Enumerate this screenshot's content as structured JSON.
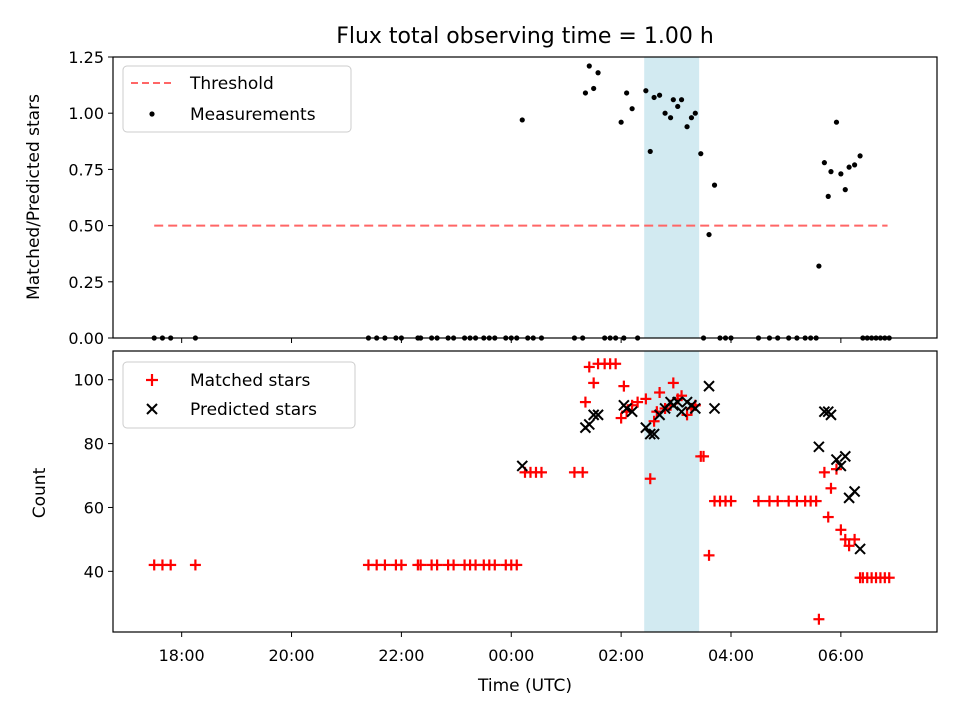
{
  "figure": {
    "title": "Flux total observing time = 1.00 h"
  },
  "chart_data": [
    {
      "type": "scatter",
      "panel": "top",
      "ylabel": "Matched/Predicted stars",
      "xlabel": "",
      "xlim_hours": [
        16.75,
        31.75
      ],
      "ylim": [
        0,
        1.25
      ],
      "y_ticks": [
        "0.00",
        "0.25",
        "0.50",
        "0.75",
        "1.00",
        "1.25"
      ],
      "shaded_span": [
        26.42,
        27.42
      ],
      "shade_color": "#add8e6",
      "threshold": {
        "name": "Threshold",
        "value": 0.5,
        "x_range": [
          17.5,
          30.85
        ],
        "color": "#ff6666",
        "style": "dashed"
      },
      "legend": {
        "position": "upper-left",
        "entries": [
          "Threshold",
          "Measurements"
        ]
      },
      "series": [
        {
          "name": "Measurements",
          "color": "#000000",
          "marker": "dot",
          "points": [
            [
              17.5,
              0
            ],
            [
              17.65,
              0
            ],
            [
              17.8,
              0
            ],
            [
              18.25,
              0
            ],
            [
              21.4,
              0
            ],
            [
              21.55,
              0
            ],
            [
              21.7,
              0
            ],
            [
              21.9,
              0
            ],
            [
              22.0,
              0
            ],
            [
              22.3,
              0
            ],
            [
              22.35,
              0
            ],
            [
              22.55,
              0
            ],
            [
              22.65,
              0
            ],
            [
              22.85,
              0
            ],
            [
              22.95,
              0
            ],
            [
              23.15,
              0
            ],
            [
              23.25,
              0
            ],
            [
              23.35,
              0
            ],
            [
              23.5,
              0
            ],
            [
              23.6,
              0
            ],
            [
              23.7,
              0
            ],
            [
              23.9,
              0
            ],
            [
              24.0,
              0
            ],
            [
              24.1,
              0
            ],
            [
              24.2,
              0.97
            ],
            [
              24.3,
              0
            ],
            [
              24.4,
              0
            ],
            [
              24.55,
              0
            ],
            [
              25.15,
              0
            ],
            [
              25.3,
              0
            ],
            [
              25.35,
              1.09
            ],
            [
              25.42,
              1.21
            ],
            [
              25.5,
              1.11
            ],
            [
              25.58,
              1.18
            ],
            [
              25.7,
              0
            ],
            [
              25.8,
              0
            ],
            [
              25.9,
              0
            ],
            [
              26.0,
              0.96
            ],
            [
              26.05,
              0
            ],
            [
              26.1,
              1.09
            ],
            [
              26.2,
              1.02
            ],
            [
              26.3,
              0
            ],
            [
              26.45,
              1.1
            ],
            [
              26.53,
              0.83
            ],
            [
              26.6,
              1.07
            ],
            [
              26.7,
              1.08
            ],
            [
              26.8,
              1.0
            ],
            [
              26.9,
              0.98
            ],
            [
              26.95,
              1.06
            ],
            [
              27.03,
              1.03
            ],
            [
              27.1,
              1.06
            ],
            [
              27.2,
              0.94
            ],
            [
              27.28,
              0.98
            ],
            [
              27.35,
              1.0
            ],
            [
              27.45,
              0.82
            ],
            [
              27.5,
              0
            ],
            [
              27.6,
              0.46
            ],
            [
              27.7,
              0.68
            ],
            [
              27.8,
              0
            ],
            [
              27.9,
              0
            ],
            [
              28.0,
              0
            ],
            [
              28.5,
              0
            ],
            [
              28.7,
              0
            ],
            [
              28.85,
              0
            ],
            [
              29.05,
              0
            ],
            [
              29.2,
              0
            ],
            [
              29.35,
              0
            ],
            [
              29.45,
              0
            ],
            [
              29.55,
              0
            ],
            [
              29.6,
              0.32
            ],
            [
              29.7,
              0.78
            ],
            [
              29.77,
              0.63
            ],
            [
              29.82,
              0.74
            ],
            [
              29.92,
              0.96
            ],
            [
              30.0,
              0.73
            ],
            [
              30.08,
              0.66
            ],
            [
              30.15,
              0.76
            ],
            [
              30.25,
              0.77
            ],
            [
              30.35,
              0.81
            ],
            [
              30.4,
              0
            ],
            [
              30.48,
              0
            ],
            [
              30.56,
              0
            ],
            [
              30.64,
              0
            ],
            [
              30.72,
              0
            ],
            [
              30.8,
              0
            ],
            [
              30.88,
              0
            ]
          ]
        }
      ]
    },
    {
      "type": "scatter",
      "panel": "bottom",
      "ylabel": "Count",
      "xlabel": "Time (UTC)",
      "xlim_hours": [
        16.75,
        31.75
      ],
      "ylim": [
        21,
        109
      ],
      "y_ticks": [
        "40",
        "60",
        "80",
        "100"
      ],
      "x_ticks": [
        "18:00",
        "20:00",
        "22:00",
        "00:00",
        "02:00",
        "04:00",
        "06:00"
      ],
      "shaded_span": [
        26.42,
        27.42
      ],
      "legend": {
        "position": "upper-left",
        "entries": [
          "Matched stars",
          "Predicted stars"
        ]
      },
      "series": [
        {
          "name": "Matched stars",
          "color": "#ff0000",
          "marker": "plus",
          "points": [
            [
              17.5,
              42
            ],
            [
              17.65,
              42
            ],
            [
              17.8,
              42
            ],
            [
              18.25,
              42
            ],
            [
              21.4,
              42
            ],
            [
              21.55,
              42
            ],
            [
              21.7,
              42
            ],
            [
              21.9,
              42
            ],
            [
              22.0,
              42
            ],
            [
              22.3,
              42
            ],
            [
              22.35,
              42
            ],
            [
              22.55,
              42
            ],
            [
              22.65,
              42
            ],
            [
              22.85,
              42
            ],
            [
              22.95,
              42
            ],
            [
              23.15,
              42
            ],
            [
              23.25,
              42
            ],
            [
              23.35,
              42
            ],
            [
              23.5,
              42
            ],
            [
              23.6,
              42
            ],
            [
              23.7,
              42
            ],
            [
              23.9,
              42
            ],
            [
              24.0,
              42
            ],
            [
              24.1,
              42
            ],
            [
              24.25,
              71
            ],
            [
              24.35,
              71
            ],
            [
              24.45,
              71
            ],
            [
              24.55,
              71
            ],
            [
              25.15,
              71
            ],
            [
              25.3,
              71
            ],
            [
              25.35,
              93
            ],
            [
              25.42,
              104
            ],
            [
              25.5,
              99
            ],
            [
              25.58,
              105
            ],
            [
              25.7,
              105
            ],
            [
              25.8,
              105
            ],
            [
              25.9,
              105
            ],
            [
              26.0,
              88
            ],
            [
              26.05,
              98
            ],
            [
              26.1,
              90
            ],
            [
              26.2,
              92
            ],
            [
              26.3,
              93
            ],
            [
              26.45,
              94
            ],
            [
              26.53,
              69
            ],
            [
              26.6,
              87
            ],
            [
              26.65,
              90
            ],
            [
              26.7,
              96
            ],
            [
              26.8,
              91
            ],
            [
              26.9,
              92
            ],
            [
              26.95,
              99
            ],
            [
              27.03,
              94
            ],
            [
              27.1,
              95
            ],
            [
              27.2,
              89
            ],
            [
              27.28,
              91
            ],
            [
              27.35,
              92
            ],
            [
              27.45,
              76
            ],
            [
              27.5,
              76
            ],
            [
              27.6,
              45
            ],
            [
              27.7,
              62
            ],
            [
              27.8,
              62
            ],
            [
              27.9,
              62
            ],
            [
              28.0,
              62
            ],
            [
              28.5,
              62
            ],
            [
              28.7,
              62
            ],
            [
              28.85,
              62
            ],
            [
              29.05,
              62
            ],
            [
              29.2,
              62
            ],
            [
              29.35,
              62
            ],
            [
              29.45,
              62
            ],
            [
              29.55,
              62
            ],
            [
              29.6,
              25
            ],
            [
              29.7,
              71
            ],
            [
              29.77,
              57
            ],
            [
              29.82,
              66
            ],
            [
              29.92,
              72
            ],
            [
              30.0,
              53
            ],
            [
              30.08,
              50
            ],
            [
              30.15,
              48
            ],
            [
              30.25,
              50
            ],
            [
              30.35,
              38
            ],
            [
              30.4,
              38
            ],
            [
              30.48,
              38
            ],
            [
              30.56,
              38
            ],
            [
              30.64,
              38
            ],
            [
              30.72,
              38
            ],
            [
              30.8,
              38
            ],
            [
              30.88,
              38
            ]
          ]
        },
        {
          "name": "Predicted stars",
          "color": "#000000",
          "marker": "x",
          "points": [
            [
              24.2,
              73
            ],
            [
              25.35,
              85
            ],
            [
              25.42,
              86
            ],
            [
              25.5,
              89
            ],
            [
              25.58,
              89
            ],
            [
              26.05,
              92
            ],
            [
              26.1,
              91
            ],
            [
              26.2,
              90
            ],
            [
              26.45,
              85
            ],
            [
              26.53,
              83
            ],
            [
              26.6,
              83
            ],
            [
              26.7,
              89
            ],
            [
              26.8,
              91
            ],
            [
              26.9,
              93
            ],
            [
              26.95,
              92
            ],
            [
              27.03,
              93
            ],
            [
              27.1,
              90
            ],
            [
              27.2,
              93
            ],
            [
              27.28,
              92
            ],
            [
              27.35,
              91
            ],
            [
              27.6,
              98
            ],
            [
              27.7,
              91
            ],
            [
              29.6,
              79
            ],
            [
              29.7,
              90
            ],
            [
              29.77,
              90
            ],
            [
              29.82,
              89
            ],
            [
              29.92,
              75
            ],
            [
              30.0,
              73
            ],
            [
              30.08,
              76
            ],
            [
              30.15,
              63
            ],
            [
              30.25,
              65
            ],
            [
              30.35,
              47
            ]
          ]
        }
      ]
    }
  ]
}
